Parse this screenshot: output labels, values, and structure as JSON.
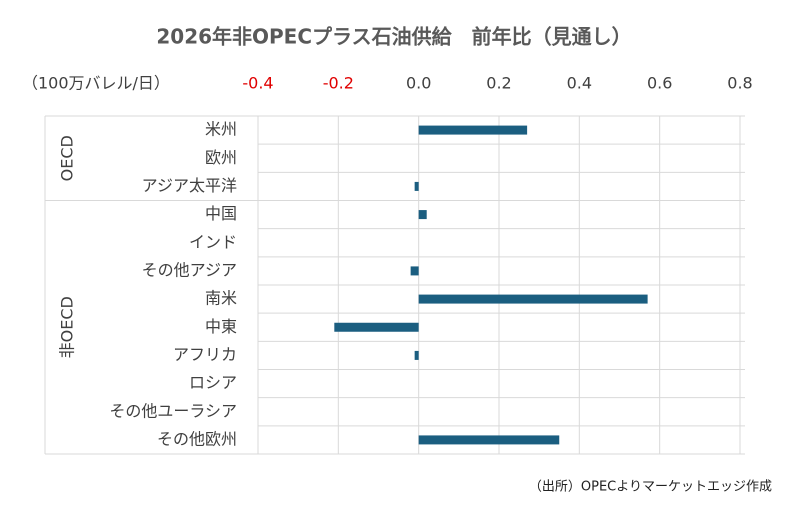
{
  "chart_data": {
    "type": "bar",
    "orientation": "horizontal",
    "title": "2026年非OPECプラス石油供給　前年比（見通し）",
    "unit_label": "（100万バレル/日）",
    "source": "（出所）OPECよりマーケットエッジ作成",
    "groups": [
      {
        "label": "OECD",
        "categories": [
          "米州",
          "欧州",
          "アジア太平洋"
        ],
        "values": [
          0.27,
          0,
          -0.01
        ]
      },
      {
        "label": "非OECD",
        "categories": [
          "中国",
          "インド",
          "その他アジア",
          "南米",
          "中東",
          "アフリカ",
          "ロシア",
          "その他ユーラシア",
          "その他欧州"
        ],
        "values": [
          0.02,
          0,
          -0.02,
          0.57,
          -0.21,
          -0.01,
          0,
          0,
          0.35
        ]
      }
    ],
    "color": "#1b5e80",
    "negative_tick_color": "#e00000",
    "xlim": [
      -0.4,
      0.8
    ],
    "xticks": [
      -0.4,
      -0.2,
      {
        "value": 0,
        "label": "0.0"
      },
      0.2,
      0.4,
      0.6,
      0.8
    ],
    "grid": true
  }
}
